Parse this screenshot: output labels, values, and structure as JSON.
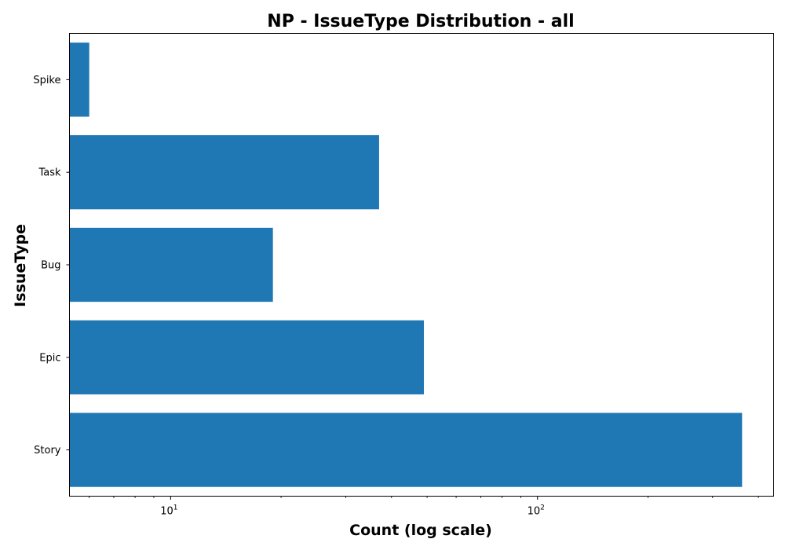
{
  "chart_data": {
    "type": "bar",
    "orientation": "horizontal",
    "title": "NP - IssueType Distribution - all",
    "xlabel": "Count (log scale)",
    "ylabel": "IssueType",
    "x_scale": "log",
    "xlim": [
      5.3,
      440
    ],
    "x_ticks": [
      {
        "value": 10,
        "base": "10",
        "exp": "1"
      },
      {
        "value": 100,
        "base": "10",
        "exp": "2"
      }
    ],
    "categories": [
      "Spike",
      "Task",
      "Bug",
      "Epic",
      "Story"
    ],
    "values": [
      6,
      37,
      19,
      49,
      361
    ],
    "bar_color": "#1f77b4",
    "grid": false,
    "legend": "none"
  }
}
